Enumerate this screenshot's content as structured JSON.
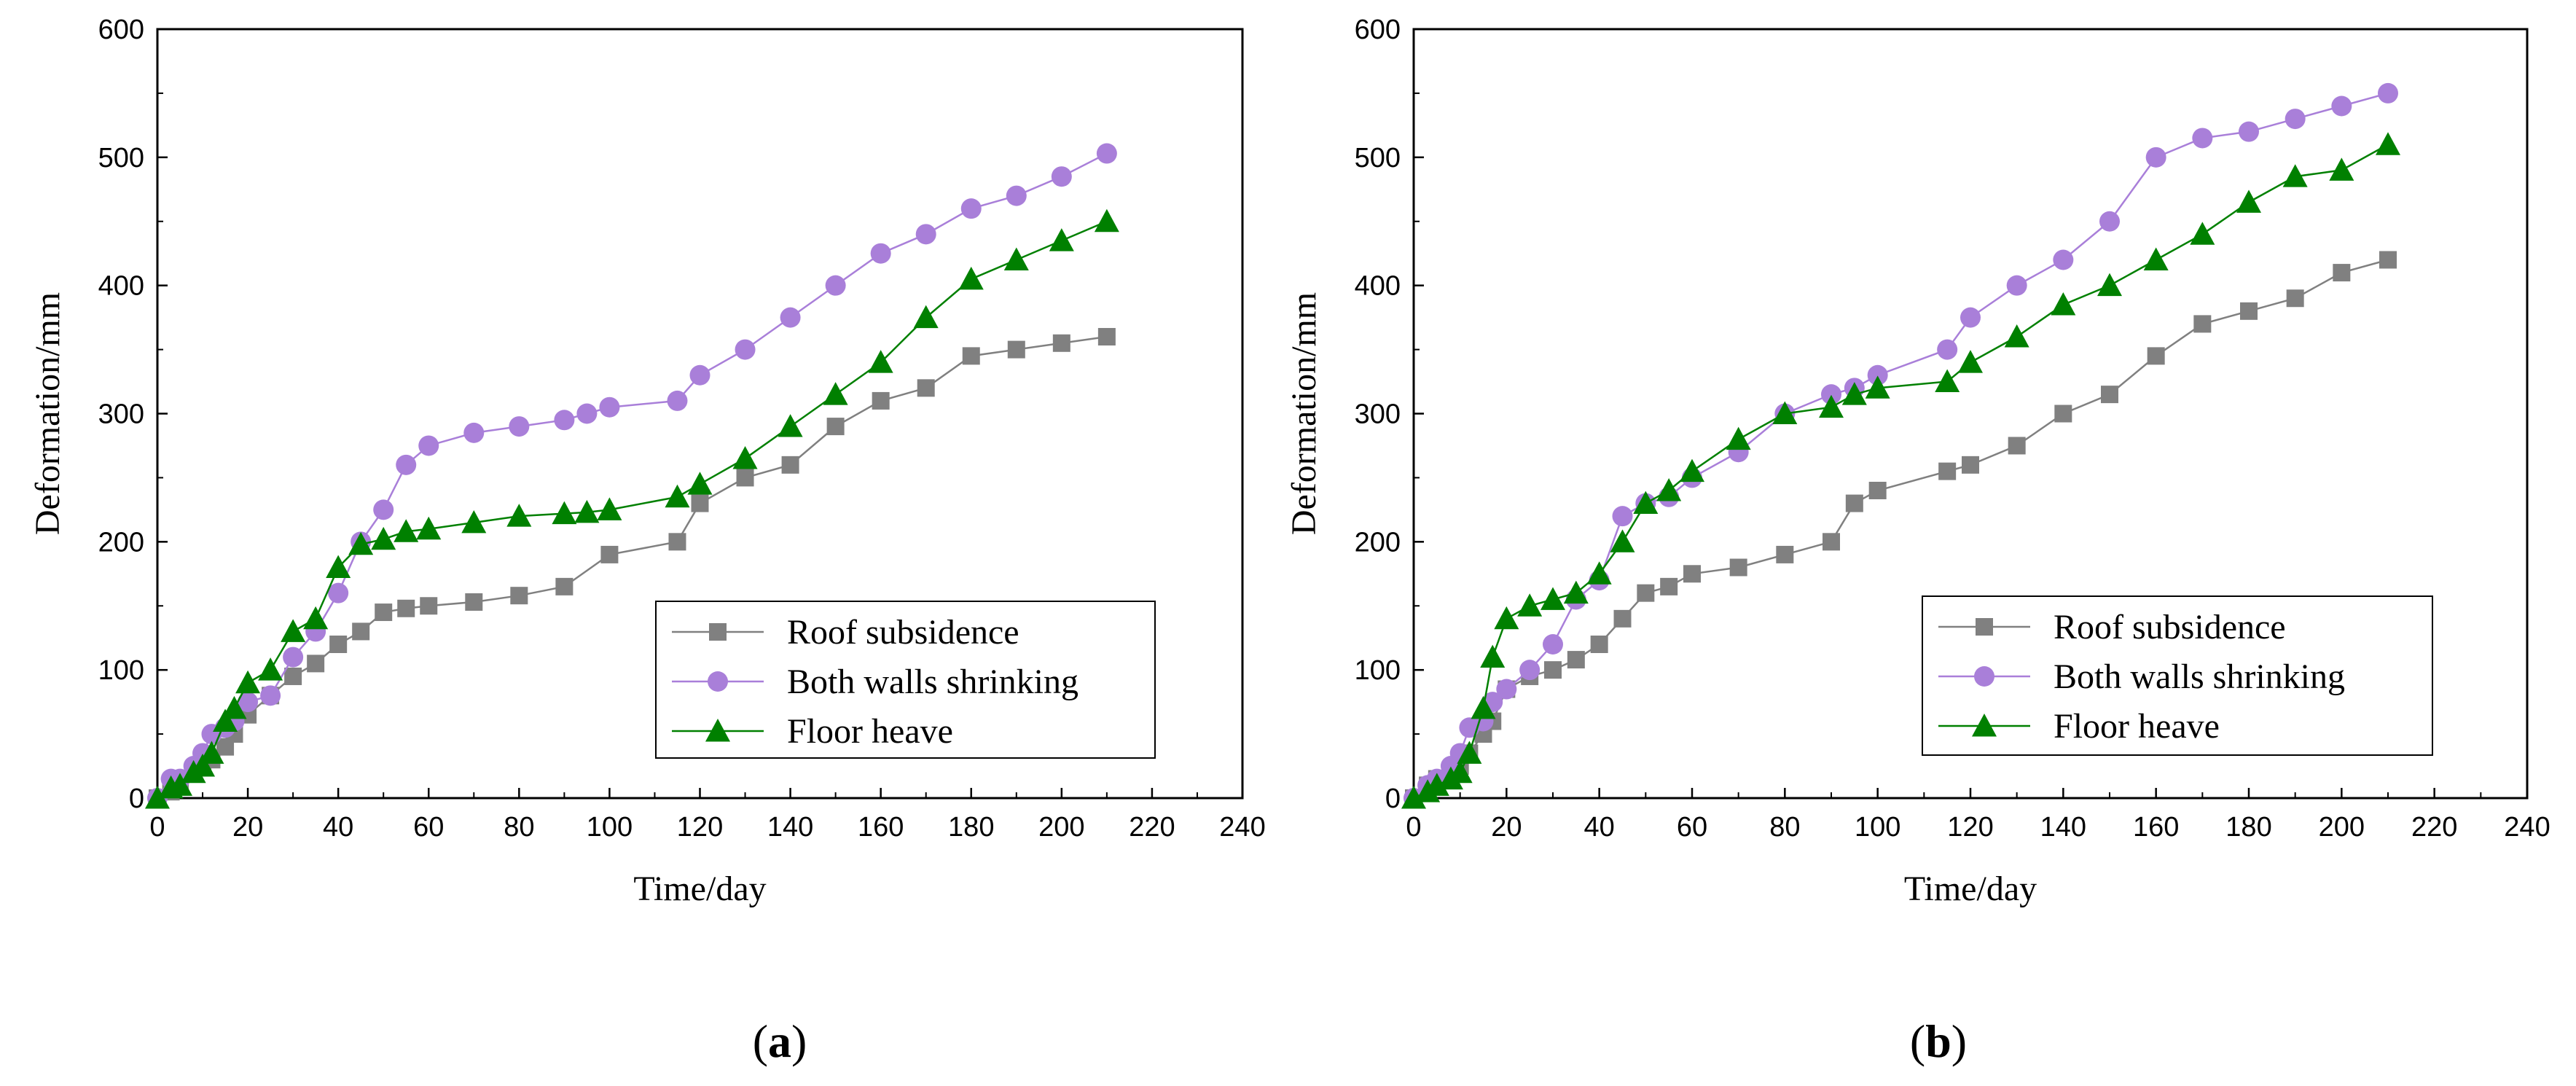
{
  "chart_data": [
    {
      "type": "line",
      "panel_label": "a",
      "xlabel": "Time/day",
      "ylabel": "Deformation/mm",
      "xlim": [
        0,
        240
      ],
      "ylim": [
        0,
        600
      ],
      "xticks": [
        0,
        20,
        40,
        60,
        80,
        100,
        120,
        140,
        160,
        180,
        200,
        220,
        240
      ],
      "yticks": [
        0,
        100,
        200,
        300,
        400,
        500,
        600
      ],
      "legend_position": "bottom-right",
      "series": [
        {
          "name": "Roof subsidence",
          "color": "#808080",
          "marker": "square",
          "x": [
            0,
            3,
            5,
            8,
            10,
            12,
            15,
            17,
            20,
            25,
            30,
            35,
            40,
            45,
            50,
            55,
            60,
            70,
            80,
            90,
            100,
            115,
            120,
            130,
            140,
            150,
            160,
            170,
            180,
            190,
            200,
            210
          ],
          "y": [
            0,
            5,
            10,
            20,
            25,
            30,
            40,
            50,
            65,
            80,
            95,
            105,
            120,
            130,
            145,
            148,
            150,
            153,
            158,
            165,
            190,
            200,
            230,
            250,
            260,
            290,
            310,
            320,
            345,
            350,
            355,
            360
          ]
        },
        {
          "name": "Both walls shrinking",
          "color": "#A97FD9",
          "marker": "circle",
          "x": [
            0,
            3,
            5,
            8,
            10,
            12,
            15,
            17,
            20,
            25,
            30,
            35,
            40,
            45,
            50,
            55,
            60,
            70,
            80,
            90,
            95,
            100,
            115,
            120,
            130,
            140,
            150,
            160,
            170,
            180,
            190,
            200,
            210
          ],
          "y": [
            0,
            15,
            15,
            25,
            35,
            50,
            55,
            60,
            75,
            80,
            110,
            130,
            160,
            200,
            225,
            260,
            275,
            285,
            290,
            295,
            300,
            305,
            310,
            330,
            350,
            375,
            400,
            425,
            440,
            460,
            470,
            485,
            503
          ]
        },
        {
          "name": "Floor heave",
          "color": "#008000",
          "marker": "triangle",
          "x": [
            0,
            3,
            5,
            8,
            10,
            12,
            15,
            17,
            20,
            25,
            30,
            35,
            40,
            45,
            50,
            55,
            60,
            70,
            80,
            90,
            95,
            100,
            115,
            120,
            130,
            140,
            150,
            160,
            170,
            180,
            190,
            200,
            210
          ],
          "y": [
            0,
            8,
            10,
            20,
            25,
            35,
            60,
            70,
            90,
            100,
            130,
            140,
            180,
            198,
            202,
            208,
            210,
            215,
            220,
            222,
            223,
            225,
            235,
            245,
            265,
            290,
            315,
            340,
            375,
            405,
            420,
            435,
            450
          ]
        }
      ]
    },
    {
      "type": "line",
      "panel_label": "b",
      "xlabel": "Time/day",
      "ylabel": "Deformation/mm",
      "xlim": [
        0,
        240
      ],
      "ylim": [
        0,
        600
      ],
      "xticks": [
        0,
        20,
        40,
        60,
        80,
        100,
        120,
        140,
        160,
        180,
        200,
        220,
        240
      ],
      "yticks": [
        0,
        100,
        200,
        300,
        400,
        500,
        600
      ],
      "legend_position": "bottom-right",
      "series": [
        {
          "name": "Roof subsidence",
          "color": "#808080",
          "marker": "square",
          "x": [
            0,
            3,
            5,
            8,
            10,
            12,
            15,
            17,
            20,
            25,
            30,
            35,
            40,
            45,
            50,
            55,
            60,
            70,
            80,
            90,
            95,
            100,
            115,
            120,
            130,
            140,
            150,
            160,
            170,
            180,
            190,
            200,
            210
          ],
          "y": [
            0,
            10,
            15,
            20,
            25,
            35,
            50,
            60,
            85,
            95,
            100,
            108,
            120,
            140,
            160,
            165,
            175,
            180,
            190,
            200,
            230,
            240,
            255,
            260,
            275,
            300,
            315,
            345,
            370,
            380,
            390,
            410,
            420
          ]
        },
        {
          "name": "Both walls shrinking",
          "color": "#A97FD9",
          "marker": "circle",
          "x": [
            0,
            3,
            5,
            8,
            10,
            12,
            15,
            17,
            20,
            25,
            30,
            35,
            40,
            45,
            50,
            55,
            60,
            70,
            80,
            90,
            95,
            100,
            115,
            120,
            130,
            140,
            150,
            160,
            170,
            180,
            190,
            200,
            210
          ],
          "y": [
            0,
            10,
            15,
            25,
            35,
            55,
            60,
            75,
            85,
            100,
            120,
            155,
            170,
            220,
            230,
            235,
            250,
            270,
            300,
            315,
            320,
            330,
            350,
            375,
            400,
            420,
            450,
            500,
            515,
            520,
            530,
            540,
            550
          ]
        },
        {
          "name": "Floor heave",
          "color": "#008000",
          "marker": "triangle",
          "x": [
            0,
            3,
            5,
            8,
            10,
            12,
            15,
            17,
            20,
            25,
            30,
            35,
            40,
            45,
            50,
            55,
            60,
            70,
            80,
            90,
            95,
            100,
            115,
            120,
            130,
            140,
            150,
            160,
            170,
            180,
            190,
            200,
            210
          ],
          "y": [
            0,
            5,
            10,
            15,
            20,
            35,
            70,
            110,
            140,
            150,
            155,
            160,
            175,
            200,
            230,
            240,
            255,
            280,
            300,
            305,
            315,
            320,
            325,
            340,
            360,
            385,
            400,
            420,
            440,
            465,
            485,
            490,
            510
          ]
        }
      ]
    }
  ]
}
